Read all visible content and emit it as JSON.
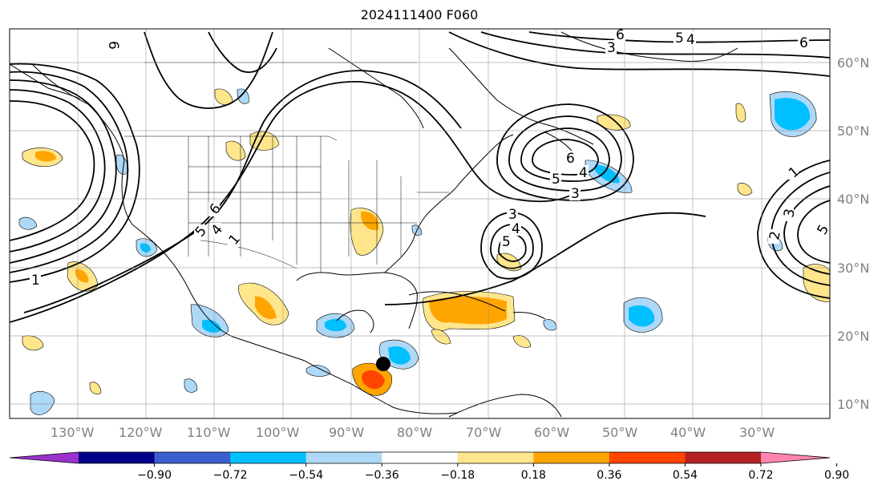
{
  "title": "2024111400 F060",
  "map": {
    "projection": "PlateCarree",
    "extent_lon": [
      -140,
      -20
    ],
    "extent_lat": [
      8,
      65
    ],
    "longitude_labels": [
      "130°W",
      "120°W",
      "110°W",
      "100°W",
      "90°W",
      "80°W",
      "70°W",
      "60°W",
      "50°W",
      "40°W",
      "30°W"
    ],
    "latitude_labels": [
      "60°N",
      "50°N",
      "40°N",
      "30°N",
      "20°N",
      "10°N"
    ],
    "gridlines": true,
    "marker": {
      "lon": -85.5,
      "lat": 16,
      "color": "#000000"
    }
  },
  "contours": {
    "color": "#000000",
    "labels": [
      "1",
      "2",
      "3",
      "4",
      "5",
      "6"
    ]
  },
  "colorbar": {
    "orientation": "horizontal",
    "extend": "both",
    "ticks": [
      "−0.90",
      "−0.72",
      "−0.54",
      "−0.36",
      "−0.18",
      "0.18",
      "0.36",
      "0.54",
      "0.72",
      "0.90"
    ],
    "colors": [
      "#9932cc",
      "#00008b",
      "#3a5fcd",
      "#00bfff",
      "#add8f7",
      "#ffffff",
      "#ffe68c",
      "#ffa500",
      "#ff4500",
      "#b22222",
      "#ff85b0"
    ]
  }
}
